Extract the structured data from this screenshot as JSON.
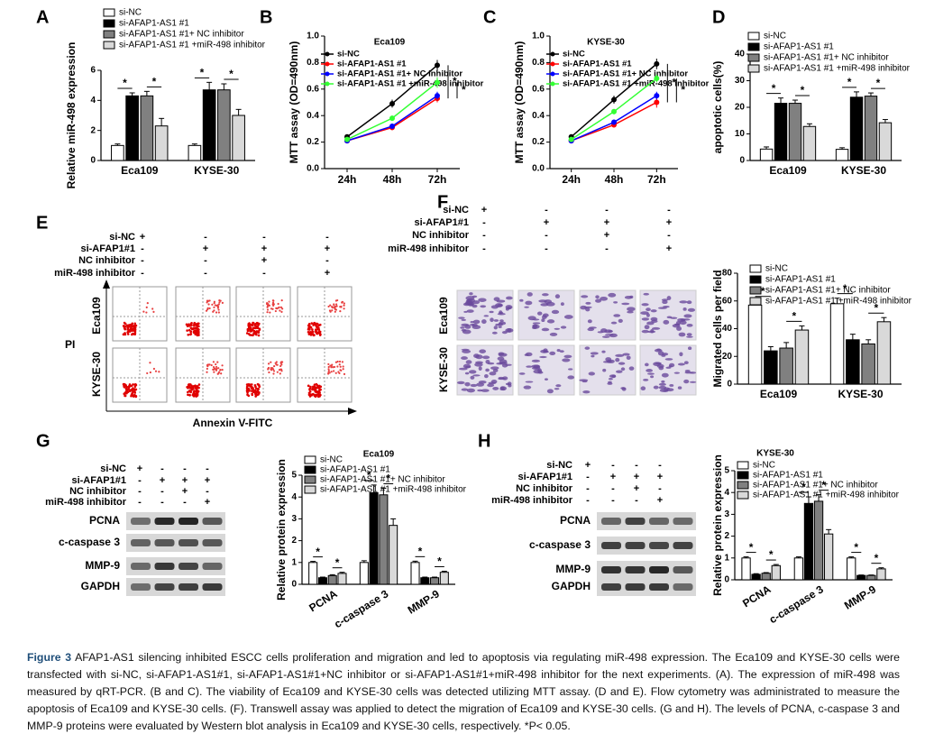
{
  "panels": [
    "A",
    "B",
    "C",
    "D",
    "E",
    "F",
    "G",
    "H"
  ],
  "chart_data": [
    {
      "type": "bar",
      "ylabel": "Relative miR-498 expression",
      "categories": [
        "Eca109",
        "KYSE-30"
      ],
      "series": [
        {
          "name": "si-NC",
          "color": "#ffffff",
          "values": [
            1.0,
            1.0
          ],
          "errors": [
            0.1,
            0.1
          ]
        },
        {
          "name": "si-AFAP1-AS1 #1",
          "color": "#000000",
          "values": [
            4.3,
            4.7
          ],
          "errors": [
            0.2,
            0.5
          ]
        },
        {
          "name": "si-AFAP1-AS1 #1+ NC inhibitor",
          "color": "#808080",
          "values": [
            4.3,
            4.7
          ],
          "errors": [
            0.3,
            0.4
          ]
        },
        {
          "name": "si-AFAP1-AS1 #1 +miR-498 inhibitor",
          "color": "#d9d9d9",
          "values": [
            2.3,
            3.0
          ],
          "errors": [
            0.5,
            0.4
          ]
        }
      ],
      "ylim": [
        0,
        6
      ],
      "yticks": [
        0,
        2,
        4,
        6
      ],
      "significance": "*"
    },
    {
      "type": "line",
      "title": "Eca109",
      "ylabel": "MTT assay (OD=490nm)",
      "categories": [
        "24h",
        "48h",
        "72h"
      ],
      "series": [
        {
          "name": "si-NC",
          "color": "#000000",
          "values": [
            0.24,
            0.49,
            0.78
          ],
          "errors": [
            0.01,
            0.03,
            0.04
          ]
        },
        {
          "name": "si-AFAP1-AS1 #1",
          "color": "#ff0000",
          "values": [
            0.21,
            0.31,
            0.53
          ],
          "errors": [
            0.01,
            0.02,
            0.03
          ]
        },
        {
          "name": "si-AFAP1-AS1 #1+ NC inhibitor",
          "color": "#0000ff",
          "values": [
            0.21,
            0.32,
            0.55
          ],
          "errors": [
            0.01,
            0.02,
            0.03
          ]
        },
        {
          "name": "si-AFAP1-AS1 #1 +miR-498 inhibitor",
          "color": "#33ff33",
          "values": [
            0.22,
            0.38,
            0.65
          ],
          "errors": [
            0.01,
            0.02,
            0.04
          ]
        }
      ],
      "ylim": [
        0,
        1
      ],
      "yticks": [
        {
          "value": 0,
          "label": "0.0"
        },
        0.2,
        0.4,
        0.6,
        0.8,
        {
          "value": 1,
          "label": "1.0"
        }
      ],
      "significance": "*"
    },
    {
      "type": "line",
      "title": "KYSE-30",
      "ylabel": "MTT assay (OD=490nm)",
      "categories": [
        "24h",
        "48h",
        "72h"
      ],
      "series": [
        {
          "name": "si-NC",
          "color": "#000000",
          "values": [
            0.24,
            0.52,
            0.79
          ],
          "errors": [
            0.01,
            0.03,
            0.04
          ]
        },
        {
          "name": "si-AFAP1-AS1 #1",
          "color": "#ff0000",
          "values": [
            0.21,
            0.33,
            0.5
          ],
          "errors": [
            0.01,
            0.02,
            0.04
          ]
        },
        {
          "name": "si-AFAP1-AS1 #1+ NC inhibitor",
          "color": "#0000ff",
          "values": [
            0.21,
            0.35,
            0.55
          ],
          "errors": [
            0.01,
            0.02,
            0.03
          ]
        },
        {
          "name": "si-AFAP1-AS1 #1 +miR-498 inhibitor",
          "color": "#33ff33",
          "values": [
            0.22,
            0.43,
            0.68
          ],
          "errors": [
            0.01,
            0.02,
            0.03
          ]
        }
      ],
      "ylim": [
        0,
        1
      ],
      "yticks": [
        {
          "value": 0,
          "label": "0.0"
        },
        0.2,
        0.4,
        0.6,
        0.8,
        {
          "value": 1,
          "label": "1.0"
        }
      ],
      "significance": "*"
    },
    {
      "type": "bar",
      "ylabel": "apoptotic cells(%)",
      "categories": [
        "Eca109",
        "KYSE-30"
      ],
      "series": [
        {
          "name": "si-NC",
          "color": "#ffffff",
          "values": [
            4.3,
            4.2
          ],
          "errors": [
            0.8,
            0.6
          ]
        },
        {
          "name": "si-AFAP1-AS1 #1",
          "color": "#000000",
          "values": [
            21.5,
            23.8
          ],
          "errors": [
            2,
            2
          ]
        },
        {
          "name": "si-AFAP1-AS1 #1+ NC inhibitor",
          "color": "#808080",
          "values": [
            21.5,
            24.2
          ],
          "errors": [
            1.2,
            1.2
          ]
        },
        {
          "name": "si-AFAP1-AS1 #1 +miR-498 inhibitor",
          "color": "#d9d9d9",
          "values": [
            12.8,
            14.2
          ],
          "errors": [
            1,
            1.2
          ]
        }
      ],
      "ylim": [
        0,
        40
      ],
      "yticks": [
        0,
        10,
        20,
        30,
        40
      ],
      "significance": "*"
    },
    {
      "type": "bar",
      "ylabel": "Migrated cells per field",
      "categories": [
        "Eca109",
        "KYSE-30"
      ],
      "series": [
        {
          "name": "si-NC",
          "color": "#ffffff",
          "values": [
            57,
            58
          ],
          "errors": [
            3,
            4
          ]
        },
        {
          "name": "si-AFAP1-AS1 #1",
          "color": "#000000",
          "values": [
            24,
            32
          ],
          "errors": [
            3,
            4
          ]
        },
        {
          "name": "si-AFAP1-AS1 #1+ NC inhibitor",
          "color": "#808080",
          "values": [
            26,
            29
          ],
          "errors": [
            4,
            3
          ]
        },
        {
          "name": "si-AFAP1-AS1 #1 +miR-498 inhibitor",
          "color": "#d9d9d9",
          "values": [
            39,
            45
          ],
          "errors": [
            3,
            3
          ]
        }
      ],
      "ylim": [
        0,
        80
      ],
      "yticks": [
        0,
        20,
        40,
        60,
        80
      ],
      "significance": "*"
    },
    {
      "type": "bar",
      "title": "Eca109",
      "ylabel": "Relative protein expression",
      "categories": [
        "PCNA",
        "c-caspase 3",
        "MMP-9"
      ],
      "series": [
        {
          "name": "si-NC",
          "color": "#ffffff",
          "values": [
            1.0,
            1.0,
            1.0
          ],
          "errors": [
            0.05,
            0.08,
            0.06
          ]
        },
        {
          "name": "si-AFAP1-AS1 #1",
          "color": "#000000",
          "values": [
            0.3,
            4.2,
            0.3
          ],
          "errors": [
            0.03,
            0.35,
            0.03
          ]
        },
        {
          "name": "si-AFAP1-AS1 #1+ NC inhibitor",
          "color": "#808080",
          "values": [
            0.4,
            4.1,
            0.3
          ],
          "errors": [
            0.04,
            0.3,
            0.03
          ]
        },
        {
          "name": "si-AFAP1-AS1 #1 +miR-498 inhibitor",
          "color": "#d9d9d9",
          "values": [
            0.5,
            2.7,
            0.55
          ],
          "errors": [
            0.05,
            0.3,
            0.05
          ]
        }
      ],
      "ylim": [
        0,
        5
      ],
      "yticks": [
        0,
        1,
        2,
        3,
        4,
        5
      ],
      "significance": "*"
    },
    {
      "type": "bar",
      "title": "KYSE-30",
      "ylabel": "Relative protein expression",
      "categories": [
        "PCNA",
        "c-caspase 3",
        "MMP-9"
      ],
      "series": [
        {
          "name": "si-NC",
          "color": "#ffffff",
          "values": [
            1.0,
            1.0,
            1.0
          ],
          "errors": [
            0.05,
            0.05,
            0.05
          ]
        },
        {
          "name": "si-AFAP1-AS1 #1",
          "color": "#000000",
          "values": [
            0.25,
            3.5,
            0.2
          ],
          "errors": [
            0.03,
            0.3,
            0.02
          ]
        },
        {
          "name": "si-AFAP1-AS1 #1+ NC inhibitor",
          "color": "#808080",
          "values": [
            0.3,
            3.6,
            0.2
          ],
          "errors": [
            0.03,
            0.3,
            0.02
          ]
        },
        {
          "name": "si-AFAP1-AS1 #1 +miR-498 inhibitor",
          "color": "#d9d9d9",
          "values": [
            0.65,
            2.1,
            0.5
          ],
          "errors": [
            0.05,
            0.2,
            0.05
          ]
        }
      ],
      "ylim": [
        0,
        5
      ],
      "yticks": [
        0,
        1,
        2,
        3,
        4,
        5
      ],
      "significance": "*"
    }
  ],
  "flow": {
    "conditions": [
      {
        "label": "si-NC",
        "signs": [
          "+",
          "-",
          "-",
          "-"
        ]
      },
      {
        "label": "si-AFAP1#1",
        "signs": [
          "-",
          "+",
          "+",
          "+"
        ]
      },
      {
        "label": "NC inhibitor",
        "signs": [
          "-",
          "-",
          "+",
          "-"
        ]
      },
      {
        "label": "miR-498 inhibitor",
        "signs": [
          "-",
          "-",
          "-",
          "+"
        ]
      }
    ],
    "rows": [
      "Eca109",
      "KYSE-30"
    ],
    "ylabel": "PI",
    "xlabel": "Annexin V-FITC"
  },
  "transwell": {
    "conditions": [
      {
        "label": "si-NC",
        "signs": [
          "+",
          "-",
          "-",
          "-"
        ]
      },
      {
        "label": "si-AFAP1#1",
        "signs": [
          "-",
          "+",
          "+",
          "+"
        ]
      },
      {
        "label": "NC inhibitor",
        "signs": [
          "-",
          "-",
          "+",
          "-"
        ]
      },
      {
        "label": "miR-498 inhibitor",
        "signs": [
          "-",
          "-",
          "-",
          "+"
        ]
      }
    ],
    "rows": [
      "Eca109",
      "KYSE-30"
    ]
  },
  "blot_g": {
    "conditions": [
      {
        "label": "si-NC",
        "signs": [
          "+",
          "-",
          "-",
          "-"
        ]
      },
      {
        "label": "si-AFAP1#1",
        "signs": [
          "-",
          "+",
          "+",
          "+"
        ]
      },
      {
        "label": "NC inhibitor",
        "signs": [
          "-",
          "-",
          "+",
          "-"
        ]
      },
      {
        "label": "miR-498 inhibitor",
        "signs": [
          "-",
          "-",
          "-",
          "+"
        ]
      }
    ],
    "proteins": [
      "PCNA",
      "c-caspase 3",
      "MMP-9",
      "GAPDH"
    ]
  },
  "blot_h": {
    "conditions": [
      {
        "label": "si-NC",
        "signs": [
          "+",
          "-",
          "-",
          "-"
        ]
      },
      {
        "label": "si-AFAP1#1",
        "signs": [
          "-",
          "+",
          "+",
          "+"
        ]
      },
      {
        "label": "NC inhibitor",
        "signs": [
          "-",
          "-",
          "+",
          "-"
        ]
      },
      {
        "label": "miR-498 inhibitor",
        "signs": [
          "-",
          "-",
          "-",
          "+"
        ]
      }
    ],
    "proteins": [
      "PCNA",
      "c-caspase 3",
      "MMP-9",
      "GAPDH"
    ]
  },
  "caption": {
    "label": "Figure 3",
    "text": "AFAP1-AS1 silencing inhibited ESCC cells proliferation and migration and led to apoptosis via regulating miR-498 expression. The Eca109 and KYSE-30 cells were transfected with si-NC, si-AFAP1-AS1#1, si-AFAP1-AS1#1+NC inhibitor or si-AFAP1-AS1#1+miR-498 inhibitor for the next experiments. (A). The expression of miR-498 was measured by qRT-PCR. (B and C). The viability of Eca109 and KYSE-30 cells was detected utilizing MTT assay. (D and E). Flow cytometry was administrated to measure the apoptosis of Eca109 and KYSE-30 cells. (F). Transwell assay was applied to detect the migration of Eca109 and KYSE-30 cells. (G and H). The levels of PCNA, c-caspase 3 and MMP-9 proteins were evaluated by Western blot analysis in Eca109 and KYSE-30 cells, respectively. *P< 0.05."
  }
}
